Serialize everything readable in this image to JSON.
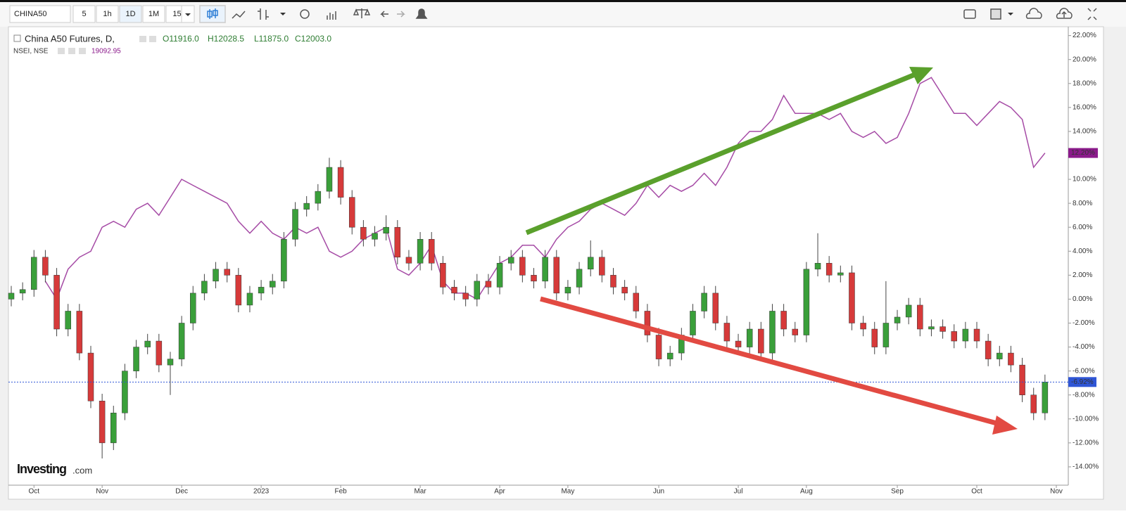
{
  "toolbar": {
    "symbol": "CHINA50",
    "intervals": [
      "5",
      "1h",
      "1D",
      "1M",
      "15"
    ]
  },
  "legend": {
    "main": "China A50 Futures, D,",
    "ohlc": [
      "O11916.0",
      "H12028.5",
      "L11875.0",
      "C12003.0"
    ],
    "compare": "NSEI, NSE",
    "compare_value": "19092.95"
  },
  "watermark": {
    "brand": "Investing",
    "suffix": ".com"
  },
  "chart_data": {
    "type": "candlestick",
    "categories": [
      null,
      null,
      "Oct",
      null,
      null,
      null,
      null,
      null,
      "Nov",
      null,
      null,
      null,
      null,
      null,
      null,
      "Dec",
      null,
      null,
      null,
      null,
      null,
      null,
      "2023",
      null,
      null,
      null,
      null,
      null,
      null,
      "Feb",
      null,
      null,
      null,
      null,
      null,
      null,
      "Mar",
      null,
      null,
      null,
      null,
      null,
      null,
      "Apr",
      null,
      null,
      null,
      null,
      null,
      "May",
      null,
      null,
      null,
      null,
      null,
      null,
      null,
      "Jun",
      null,
      null,
      null,
      null,
      null,
      null,
      "Jul",
      null,
      null,
      null,
      null,
      null,
      "Aug",
      null,
      null,
      null,
      null,
      null,
      null,
      null,
      "Sep",
      null,
      null,
      null,
      null,
      null,
      null,
      "Oct",
      null,
      null,
      null,
      null,
      null,
      null,
      "Nov"
    ],
    "open": [
      0,
      0.5,
      0.8,
      3.5,
      2,
      -2.5,
      -1,
      -4.5,
      -8.5,
      -12,
      -9.5,
      -6,
      -4,
      -3.5,
      -5.5,
      -5,
      -2,
      0.5,
      1.5,
      2.5,
      2,
      -0.5,
      0.5,
      1,
      1.5,
      5,
      7.5,
      8,
      9,
      11,
      8.5,
      6,
      5,
      5.5,
      6,
      3.5,
      3,
      5,
      3,
      1,
      0.5,
      0,
      1.5,
      1,
      3,
      3.5,
      2,
      1.5,
      3.5,
      0.5,
      1,
      2.5,
      3.5,
      2,
      1,
      0.5,
      -1,
      -3,
      -5,
      -4.5,
      -3,
      -1,
      0.5,
      -2,
      -3.5,
      -4,
      -2.5,
      -4.5,
      -1,
      -2.5,
      -3,
      2.5,
      3,
      2,
      2.2,
      -2,
      -2.5,
      -4,
      -2,
      -1.5,
      -0.5,
      -2.5,
      -2.3,
      -2.7,
      -3.5,
      -2.5,
      -3.5,
      -5,
      -4.5,
      -5.5,
      -8,
      -9.5,
      null
    ],
    "high": [
      1.1,
      1.4,
      4.1,
      4.1,
      2.6,
      -0.4,
      -0.4,
      -3.9,
      -7.9,
      -8.9,
      -5.4,
      -3.4,
      -2.9,
      -2.9,
      -4.4,
      -1.4,
      1.1,
      2.1,
      3.1,
      3.1,
      2.6,
      1.1,
      1.6,
      2.1,
      5.6,
      8.1,
      8.6,
      9.6,
      11.8,
      11.6,
      9.1,
      6.6,
      6.1,
      7,
      6.6,
      4.1,
      5.6,
      5.6,
      3.6,
      1.6,
      1.1,
      2.1,
      2.1,
      3.6,
      4.1,
      4.1,
      2.6,
      4.1,
      4.1,
      1.6,
      3.1,
      4.9,
      4.1,
      2.6,
      1.6,
      1.1,
      -0.4,
      -2.4,
      -3.9,
      -2.4,
      -0.4,
      1.1,
      1.1,
      -1.4,
      -2.9,
      -1.9,
      -1.9,
      -0.4,
      -0.4,
      -1.9,
      3.1,
      5.5,
      3.6,
      2.8,
      2.8,
      -1.4,
      -1.9,
      1.5,
      -0.9,
      0.1,
      0.1,
      -1.7,
      -1.7,
      -2.1,
      -1.9,
      -1.9,
      -2.9,
      -3.9,
      -3.9,
      -4.9,
      -7.4,
      -6.3,
      null
    ],
    "low": [
      -0.6,
      -0.1,
      0.2,
      1.4,
      -3.1,
      -3.1,
      -5.1,
      -9.1,
      -13.3,
      -12.6,
      -10.1,
      -6.6,
      -4.6,
      -6.1,
      -8,
      -5.6,
      -2.6,
      -0.1,
      0.9,
      1.4,
      -1.1,
      -1.1,
      -0.1,
      0.4,
      0.9,
      4.4,
      6.9,
      7.4,
      8.4,
      7.9,
      5.4,
      4.4,
      4.4,
      4.9,
      2.9,
      2.4,
      2.4,
      2.4,
      0.4,
      -0.1,
      -0.6,
      -0.6,
      0.4,
      0.4,
      2.4,
      1.4,
      0.9,
      0.9,
      -0.1,
      -0.1,
      0.4,
      1.9,
      1.4,
      0.4,
      -0.1,
      -1.6,
      -3.6,
      -5.6,
      -5.6,
      -5.1,
      -3.6,
      -1.6,
      -2.6,
      -4.1,
      -4.6,
      -4.6,
      -5.1,
      -5.1,
      -3.1,
      -3.6,
      -3.6,
      1.9,
      1.4,
      1.4,
      -2.6,
      -3.1,
      -4.6,
      -4.6,
      -2.6,
      -2.1,
      -3.1,
      -3.1,
      -3.3,
      -4.1,
      -4.1,
      -4.1,
      -5.6,
      -5.6,
      -6.1,
      -8.6,
      -10.1,
      -10.1,
      null
    ],
    "close": [
      0.5,
      0.8,
      3.5,
      2,
      -2.5,
      -1,
      -4.5,
      -8.5,
      -12,
      -9.5,
      -6,
      -4,
      -3.5,
      -5.5,
      -5,
      -2,
      0.5,
      1.5,
      2.5,
      2,
      -0.5,
      0.5,
      1,
      1.5,
      5,
      7.5,
      8,
      9,
      11,
      8.5,
      6,
      5,
      5.5,
      6,
      3.5,
      3,
      5,
      3,
      1,
      0.5,
      0,
      1.5,
      1,
      3,
      3.5,
      2,
      1.5,
      3.5,
      0.5,
      1,
      2.5,
      3.5,
      2,
      1,
      0.5,
      -1,
      -3,
      -5,
      -4.5,
      -3,
      -1,
      0.5,
      -2,
      -3.5,
      -4,
      -2.5,
      -4.5,
      -1,
      -2.5,
      -3,
      2.5,
      3,
      2,
      2.2,
      -2,
      -2.5,
      -4,
      -2,
      -1.5,
      -0.5,
      -2.5,
      -2.3,
      -2.7,
      -3.5,
      -2.5,
      -3.5,
      -5,
      -4.5,
      -5.5,
      -8,
      -9.5,
      -6.92,
      null
    ],
    "up_color": "#3a9f3a",
    "down_color": "#d63a3a",
    "last_label": {
      "value": -6.92,
      "label": "-6.92%"
    },
    "last_color": "#2f56d6",
    "compare": {
      "color": "#a64ca6",
      "values": [
        null,
        null,
        null,
        1.5,
        0,
        2.5,
        3.5,
        4,
        6,
        6.5,
        6,
        7.5,
        8,
        7,
        8.5,
        10,
        9.5,
        9,
        8.5,
        8,
        6.5,
        5.5,
        6.5,
        5.5,
        5,
        6,
        5.5,
        6,
        4,
        3.5,
        4,
        5,
        5.5,
        6,
        2.5,
        2,
        3,
        4.5,
        1.5,
        0.5,
        0.5,
        0,
        1.5,
        3,
        3.5,
        4.5,
        4.5,
        3.5,
        5,
        6,
        6.5,
        7.5,
        8,
        7.5,
        7,
        8,
        9.5,
        8.5,
        9.5,
        9,
        9.5,
        10.5,
        9.5,
        11,
        13,
        14,
        14,
        15,
        17,
        15.5,
        15.5,
        15.5,
        15,
        15.5,
        14,
        13.5,
        14,
        13,
        13.5,
        15.5,
        18,
        18.5,
        17,
        15.5,
        15.5,
        14.5,
        15.5,
        16.5,
        16,
        15,
        11,
        12.2,
        null
      ],
      "last_label": {
        "value": 12.2,
        "label": "12.20%"
      },
      "label_color": "#8b1a8b"
    },
    "ylim": [
      -15.53,
      22.74
    ],
    "yticks": [
      {
        "value": 22,
        "label": "22.00%"
      },
      {
        "value": 20,
        "label": "20.00%"
      },
      {
        "value": 18,
        "label": "18.00%"
      },
      {
        "value": 16,
        "label": "16.00%"
      },
      {
        "value": 14,
        "label": "14.00%"
      },
      {
        "value": 12,
        "label": "12.00%"
      },
      {
        "value": 10,
        "label": "10.00%"
      },
      {
        "value": 8,
        "label": "8.00%"
      },
      {
        "value": 6,
        "label": "6.00%"
      },
      {
        "value": 4,
        "label": "4.00%"
      },
      {
        "value": 2,
        "label": "2.00%"
      },
      {
        "value": 0,
        "label": "0.00%"
      },
      {
        "value": -2,
        "label": "-2.00%"
      },
      {
        "value": -4,
        "label": "-4.00%"
      },
      {
        "value": -6,
        "label": "-6.00%"
      },
      {
        "value": -8,
        "label": "-8.00%"
      },
      {
        "value": -10,
        "label": "-10.00%"
      },
      {
        "value": -12,
        "label": "-12.00%"
      },
      {
        "value": -14,
        "label": "-14.00%"
      }
    ],
    "grid": false
  }
}
